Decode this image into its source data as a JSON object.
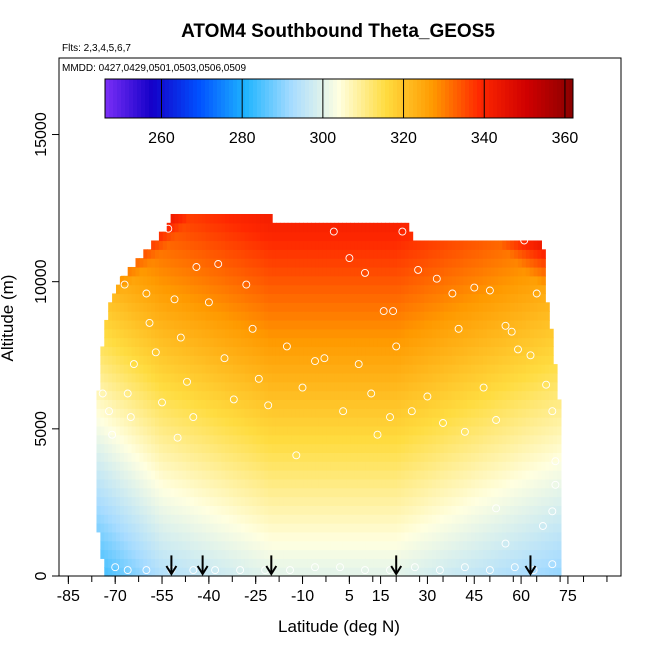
{
  "chart_data": {
    "type": "heatmap",
    "title": "ATOM4 Southbound Theta_GEOS5",
    "subtitle": "Flts: 2,3,4,5,6,7",
    "legend_note": "MMDD: 0427,0429,0501,0503,0506,0509",
    "xlabel": "Latitude (deg N)",
    "ylabel": "Altitude (m)",
    "xlim": [
      -88,
      92
    ],
    "ylim": [
      0,
      17600
    ],
    "x_ticks": [
      -85,
      -70,
      -55,
      -40,
      -25,
      -10,
      5,
      15,
      30,
      45,
      60,
      75
    ],
    "y_ticks": [
      0,
      5000,
      10000,
      15000
    ],
    "colorbar": {
      "range": [
        246,
        362
      ],
      "ticks": [
        260,
        280,
        300,
        320,
        340,
        360
      ],
      "position": "top-inside",
      "colors": [
        "#7b2ff7",
        "#1400c8",
        "#0050ff",
        "#1eb4ff",
        "#a8dcff",
        "#ffffe0",
        "#ffdc40",
        "#ff9a00",
        "#ff2800",
        "#d00000",
        "#8a0000"
      ]
    },
    "field": {
      "lat_range": [
        -76,
        72
      ],
      "alt_top_profile": [
        {
          "lat": -76,
          "top": 5200
        },
        {
          "lat": -75,
          "top": 7000
        },
        {
          "lat": -73,
          "top": 8600
        },
        {
          "lat": -70,
          "top": 9800
        },
        {
          "lat": -65,
          "top": 10400
        },
        {
          "lat": -58,
          "top": 11300
        },
        {
          "lat": -50,
          "top": 12400
        },
        {
          "lat": -20,
          "top": 12400
        },
        {
          "lat": -19,
          "top": 11900
        },
        {
          "lat": 24,
          "top": 11900
        },
        {
          "lat": 25,
          "top": 11400
        },
        {
          "lat": 67,
          "top": 11400
        },
        {
          "lat": 68,
          "top": 9600
        },
        {
          "lat": 70,
          "top": 8200
        },
        {
          "lat": 72,
          "top": 6000
        }
      ],
      "alt_bottom_profile": [
        {
          "lat": -76,
          "top": 2000
        },
        {
          "lat": -73,
          "top": 0
        }
      ]
    },
    "flight_obs_points": [
      {
        "lat": -79,
        "alt": 9600
      },
      {
        "lat": -77,
        "alt": 9500
      },
      {
        "lat": -74,
        "alt": 6200
      },
      {
        "lat": -72,
        "alt": 5600
      },
      {
        "lat": -71,
        "alt": 4800
      },
      {
        "lat": -69,
        "alt": 10300
      },
      {
        "lat": -67,
        "alt": 9900
      },
      {
        "lat": -66,
        "alt": 6200
      },
      {
        "lat": -65,
        "alt": 5400
      },
      {
        "lat": -64,
        "alt": 7200
      },
      {
        "lat": -62,
        "alt": 11300
      },
      {
        "lat": -60,
        "alt": 9600
      },
      {
        "lat": -59,
        "alt": 8600
      },
      {
        "lat": -57,
        "alt": 7600
      },
      {
        "lat": -55,
        "alt": 5900
      },
      {
        "lat": -53,
        "alt": 11800
      },
      {
        "lat": -51,
        "alt": 9400
      },
      {
        "lat": -50,
        "alt": 4700
      },
      {
        "lat": -49,
        "alt": 8100
      },
      {
        "lat": -47,
        "alt": 6600
      },
      {
        "lat": -45,
        "alt": 5400
      },
      {
        "lat": -44,
        "alt": 10500
      },
      {
        "lat": -40,
        "alt": 9300
      },
      {
        "lat": -37,
        "alt": 10600
      },
      {
        "lat": -35,
        "alt": 7400
      },
      {
        "lat": -32,
        "alt": 6000
      },
      {
        "lat": -28,
        "alt": 9900
      },
      {
        "lat": -26,
        "alt": 8400
      },
      {
        "lat": -24,
        "alt": 6700
      },
      {
        "lat": -21,
        "alt": 5800
      },
      {
        "lat": -18,
        "alt": 12300
      },
      {
        "lat": -15,
        "alt": 7800
      },
      {
        "lat": -12,
        "alt": 4100
      },
      {
        "lat": -10,
        "alt": 6400
      },
      {
        "lat": -6,
        "alt": 7300
      },
      {
        "lat": -3,
        "alt": 7400
      },
      {
        "lat": 0,
        "alt": 11700
      },
      {
        "lat": 3,
        "alt": 5600
      },
      {
        "lat": 5,
        "alt": 10800
      },
      {
        "lat": 8,
        "alt": 7200
      },
      {
        "lat": 10,
        "alt": 10300
      },
      {
        "lat": 12,
        "alt": 6200
      },
      {
        "lat": 14,
        "alt": 4800
      },
      {
        "lat": 16,
        "alt": 9000
      },
      {
        "lat": 18,
        "alt": 5400
      },
      {
        "lat": 19,
        "alt": 9000
      },
      {
        "lat": 20,
        "alt": 7800
      },
      {
        "lat": 22,
        "alt": 11700
      },
      {
        "lat": 25,
        "alt": 5600
      },
      {
        "lat": 27,
        "alt": 10400
      },
      {
        "lat": 30,
        "alt": 6100
      },
      {
        "lat": 33,
        "alt": 10100
      },
      {
        "lat": 35,
        "alt": 5200
      },
      {
        "lat": 38,
        "alt": 9600
      },
      {
        "lat": 40,
        "alt": 8400
      },
      {
        "lat": 42,
        "alt": 4900
      },
      {
        "lat": 45,
        "alt": 9800
      },
      {
        "lat": 48,
        "alt": 6400
      },
      {
        "lat": 50,
        "alt": 9700
      },
      {
        "lat": 52,
        "alt": 5300
      },
      {
        "lat": 55,
        "alt": 8500
      },
      {
        "lat": 57,
        "alt": 8300
      },
      {
        "lat": 59,
        "alt": 7700
      },
      {
        "lat": 61,
        "alt": 11400
      },
      {
        "lat": 63,
        "alt": 7500
      },
      {
        "lat": 65,
        "alt": 9600
      },
      {
        "lat": 68,
        "alt": 6500
      },
      {
        "lat": 70,
        "alt": 5600
      },
      {
        "lat": 71,
        "alt": 3900
      },
      {
        "lat": 71,
        "alt": 3100
      },
      {
        "lat": 70,
        "alt": 2200
      },
      {
        "lat": 67,
        "alt": 1700
      },
      {
        "lat": 55,
        "alt": 1100
      },
      {
        "lat": 52,
        "alt": 2300
      },
      {
        "lat": -78,
        "alt": 200
      },
      {
        "lat": -75,
        "alt": 300
      },
      {
        "lat": -70,
        "alt": 300
      },
      {
        "lat": -66,
        "alt": 200
      },
      {
        "lat": -60,
        "alt": 200
      },
      {
        "lat": -52,
        "alt": 200
      },
      {
        "lat": -45,
        "alt": 200
      },
      {
        "lat": -38,
        "alt": 200
      },
      {
        "lat": -30,
        "alt": 200
      },
      {
        "lat": -22,
        "alt": 200
      },
      {
        "lat": -14,
        "alt": 200
      },
      {
        "lat": -6,
        "alt": 300
      },
      {
        "lat": 2,
        "alt": 300
      },
      {
        "lat": 10,
        "alt": 200
      },
      {
        "lat": 18,
        "alt": 200
      },
      {
        "lat": 26,
        "alt": 300
      },
      {
        "lat": 34,
        "alt": 200
      },
      {
        "lat": 42,
        "alt": 300
      },
      {
        "lat": 50,
        "alt": 200
      },
      {
        "lat": 58,
        "alt": 300
      },
      {
        "lat": 64,
        "alt": 200
      },
      {
        "lat": 70,
        "alt": 400
      }
    ],
    "arrow_latitudes": [
      -52,
      -42,
      -20,
      20,
      63
    ]
  }
}
